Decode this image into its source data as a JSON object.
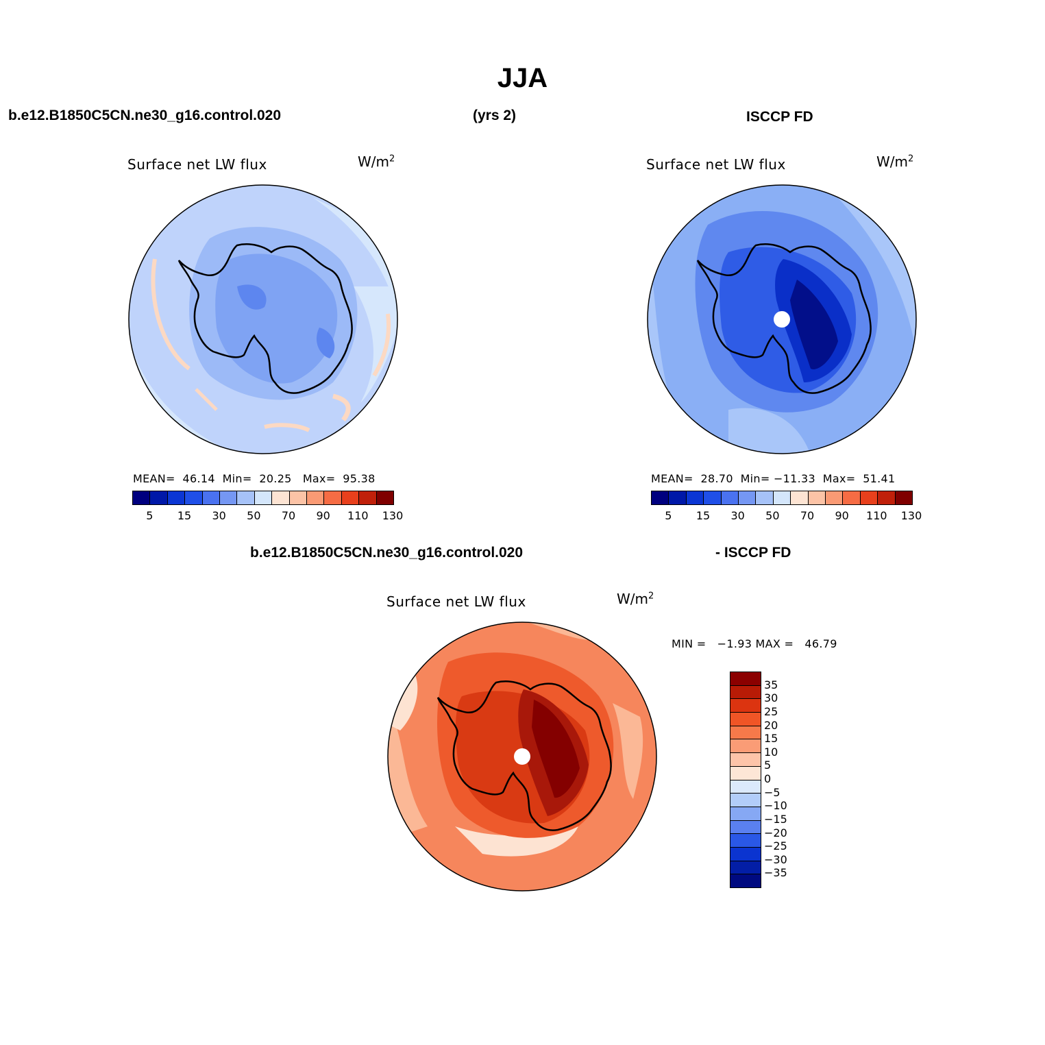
{
  "title": "JJA",
  "header": {
    "case_name": "b.e12.B1850C5CN.ne30_g16.control.020",
    "years": "(yrs 2)",
    "obs_name": "ISCCP FD"
  },
  "diff_header": {
    "case_name": "b.e12.B1850C5CN.ne30_g16.control.020",
    "obs_name": "- ISCCP FD"
  },
  "panels": {
    "model": {
      "title": "Surface net LW flux",
      "units": "W/m",
      "units_exp": "2",
      "stats": "MEAN=  46.14  Min=  20.25   Max=  95.38"
    },
    "obs": {
      "title": "Surface net LW flux",
      "units": "W/m",
      "units_exp": "2",
      "stats": "MEAN=  28.70  Min= −11.33  Max=  51.41"
    },
    "diff": {
      "title": "Surface net LW flux",
      "units": "W/m",
      "units_exp": "2",
      "stats": "MIN =   −1.93 MAX =   46.79"
    }
  },
  "colorbar_main": {
    "colors": [
      "#00007f",
      "#0018a8",
      "#0b36d4",
      "#1f4fe8",
      "#4a72f0",
      "#7597f3",
      "#a6c2f8",
      "#d4e6fb",
      "#fde4d3",
      "#fcc3a6",
      "#fa9a74",
      "#f66c44",
      "#e8401c",
      "#c0200a",
      "#7f0000"
    ],
    "tick_labels": [
      "5",
      "15",
      "30",
      "50",
      "70",
      "90",
      "110",
      "130"
    ]
  },
  "colorbar_diff": {
    "colors": [
      "#8b0000",
      "#b81b06",
      "#dc3410",
      "#f05526",
      "#f6794a",
      "#fa9c76",
      "#fdc4a9",
      "#fde6d6",
      "#dbe9fb",
      "#b2cdf9",
      "#86a8f4",
      "#5a80ef",
      "#2a58e6",
      "#0b34d0",
      "#031ea6",
      "#000a80"
    ],
    "tick_labels": [
      "35",
      "30",
      "25",
      "20",
      "15",
      "10",
      "5",
      "0",
      "−5",
      "−10",
      "−15",
      "−20",
      "−25",
      "−30",
      "−35"
    ]
  },
  "maps": {
    "model_colors": {
      "base": "#bfd3fb",
      "rim": "#d6e7fc",
      "ring": "#9cbaf7",
      "inner": "#7fa3f3",
      "dark": "#5d86ef",
      "warm": "#fcd9c3"
    },
    "obs_colors": {
      "base": "#8aaff5",
      "rim": "#a9c6f9",
      "ring": "#5f88ef",
      "inner": "#2f5ce6",
      "dark": "#0a2fc8",
      "deep": "#020f8a"
    },
    "diff_colors": {
      "base": "#f6865c",
      "rim": "#fbb896",
      "ring": "#ee5a2c",
      "inner": "#d93a13",
      "dark": "#a8180a",
      "deep": "#840000",
      "light": "#fde3d2"
    }
  }
}
